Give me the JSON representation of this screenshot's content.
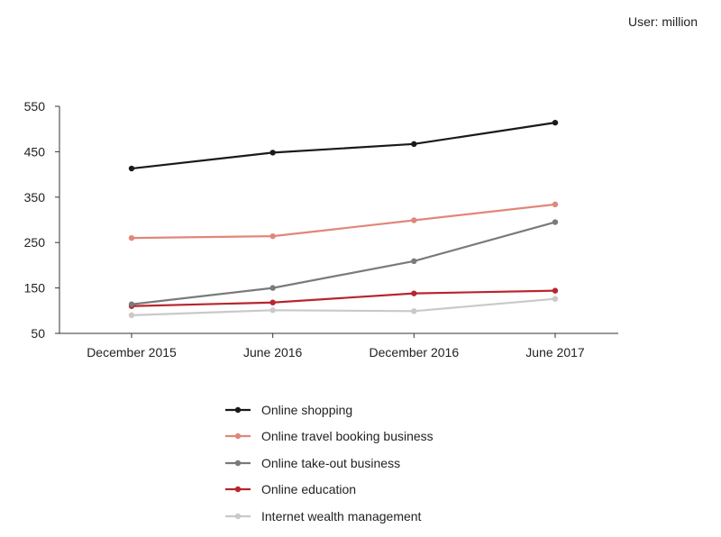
{
  "unit_note": "User: million",
  "chart_data": {
    "type": "line",
    "title": "",
    "xlabel": "",
    "ylabel": "",
    "categories": [
      "December 2015",
      "June 2016",
      "December 2016",
      "June 2017"
    ],
    "ylim": [
      50,
      550
    ],
    "yticks": [
      50,
      150,
      250,
      350,
      450,
      550
    ],
    "grid": false,
    "legend_position": "bottom",
    "series": [
      {
        "name": "Online shopping",
        "color": "#1a1a1a",
        "values": [
          413,
          448,
          467,
          514
        ]
      },
      {
        "name": "Online travel booking business",
        "color": "#e0877a",
        "values": [
          260,
          264,
          299,
          334
        ]
      },
      {
        "name": "Online take-out business",
        "color": "#7a7a7a",
        "values": [
          114,
          150,
          209,
          295
        ]
      },
      {
        "name": "Online education",
        "color": "#b8252e",
        "values": [
          110,
          118,
          138,
          144
        ]
      },
      {
        "name": "Internet wealth management",
        "color": "#c9c9c9",
        "values": [
          90,
          101,
          99,
          126
        ]
      }
    ]
  }
}
